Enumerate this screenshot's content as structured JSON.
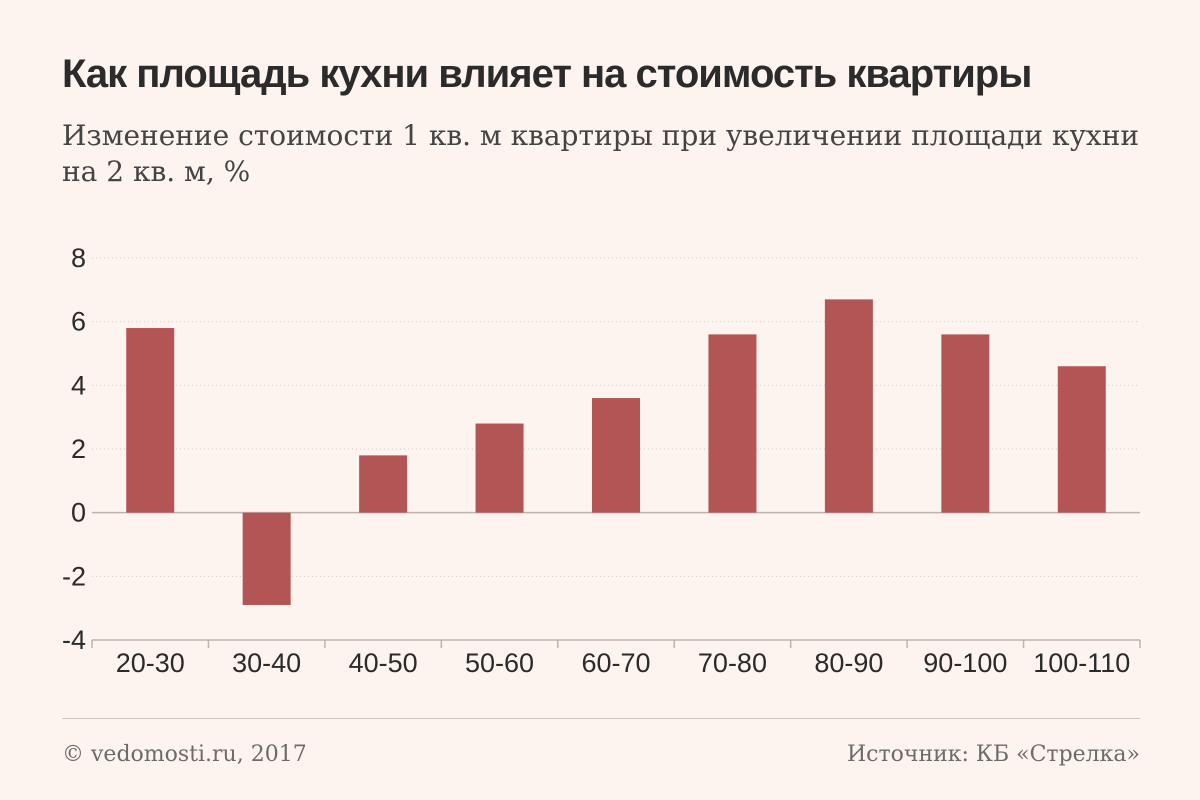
{
  "title": "Как площадь кухни влияет на стоимость квартиры",
  "subtitle": "Изменение стоимости 1 кв. м квартиры при увеличении площади кухни на 2 кв. м, %",
  "footer": {
    "copyright": "© vedomosti.ru, 2017",
    "source": "Источник: КБ «Стрелка»"
  },
  "colors": {
    "bar": "#b45555",
    "grid": "#cfc6c2",
    "zero_line": "#bdb3af",
    "background": "#fdf3ef"
  },
  "chart_data": {
    "type": "bar",
    "title": "Как площадь кухни влияет на стоимость квартиры",
    "ylabel": "",
    "xlabel": "",
    "categories": [
      "20-30",
      "30-40",
      "40-50",
      "50-60",
      "60-70",
      "70-80",
      "80-90",
      "90-100",
      "100-110"
    ],
    "values": [
      5.8,
      -2.9,
      1.8,
      2.8,
      3.6,
      5.6,
      6.7,
      5.6,
      4.6
    ],
    "ylim": [
      -4,
      8
    ],
    "yticks": [
      "8",
      "6",
      "4",
      "2",
      "0",
      "-2",
      "-4"
    ],
    "grid": true
  }
}
